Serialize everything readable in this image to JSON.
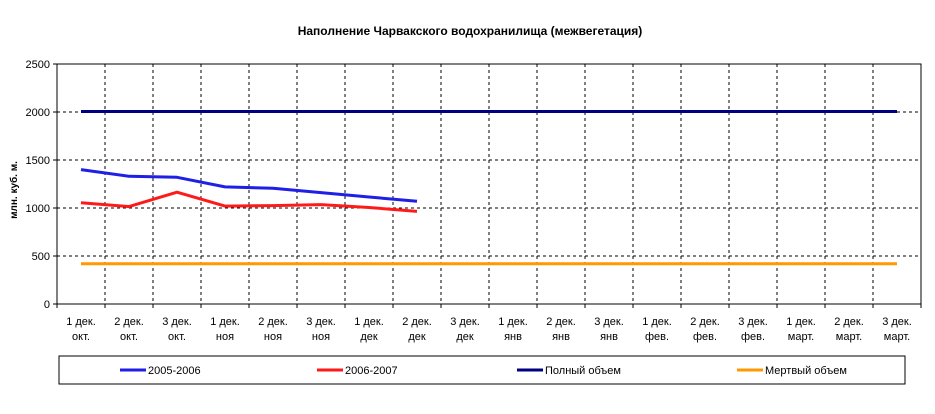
{
  "chart_data": {
    "type": "line",
    "title": "Наполнение Чарвакского водохранилища  (межвегетация)",
    "ylabel": "млн. куб. м.",
    "xlabel": "",
    "ylim": [
      0,
      2500
    ],
    "yticks": [
      "0",
      "500",
      "1000",
      "1500",
      "2000",
      "2500"
    ],
    "ytick_values": [
      0,
      500,
      1000,
      1500,
      2000,
      2500
    ],
    "grid": true,
    "legend_position": "bottom",
    "categories": [
      [
        "1 дек.",
        "окт."
      ],
      [
        "2 дек.",
        "окт."
      ],
      [
        "3 дек.",
        "окт."
      ],
      [
        "1 дек.",
        "ноя"
      ],
      [
        "2 дек.",
        "ноя"
      ],
      [
        "3 дек.",
        "ноя"
      ],
      [
        "1 дек.",
        "дек"
      ],
      [
        "2 дек.",
        "дек"
      ],
      [
        "3 дек.",
        "дек"
      ],
      [
        "1 дек.",
        "янв"
      ],
      [
        "2 дек.",
        "янв"
      ],
      [
        "3 дек.",
        "янв"
      ],
      [
        "1 дек.",
        "фев."
      ],
      [
        "2 дек.",
        "фев."
      ],
      [
        "3 дек.",
        "фев."
      ],
      [
        "1 дек.",
        "март."
      ],
      [
        "2 дек.",
        "март."
      ],
      [
        "3 дек.",
        "март."
      ]
    ],
    "series": [
      {
        "name": "2005-2006",
        "color": "#1f1fe6",
        "values": [
          1400,
          1330,
          1320,
          1220,
          1205,
          1160,
          1115,
          1070,
          null,
          null,
          null,
          null,
          null,
          null,
          null,
          null,
          null,
          null
        ]
      },
      {
        "name": "2006-2007",
        "color": "#ff1a1a",
        "values": [
          1055,
          1015,
          1165,
          1020,
          1025,
          1035,
          1005,
          965,
          null,
          null,
          null,
          null,
          null,
          null,
          null,
          null,
          null,
          null
        ]
      },
      {
        "name": "Полный объем",
        "color": "#000080",
        "values": [
          2005,
          2005,
          2005,
          2005,
          2005,
          2005,
          2005,
          2005,
          2005,
          2005,
          2005,
          2005,
          2005,
          2005,
          2005,
          2005,
          2005,
          2005
        ]
      },
      {
        "name": "Мертвый объем",
        "color": "#ff9900",
        "values": [
          420,
          420,
          420,
          420,
          420,
          420,
          420,
          420,
          420,
          420,
          420,
          420,
          420,
          420,
          420,
          420,
          420,
          420
        ]
      }
    ]
  }
}
